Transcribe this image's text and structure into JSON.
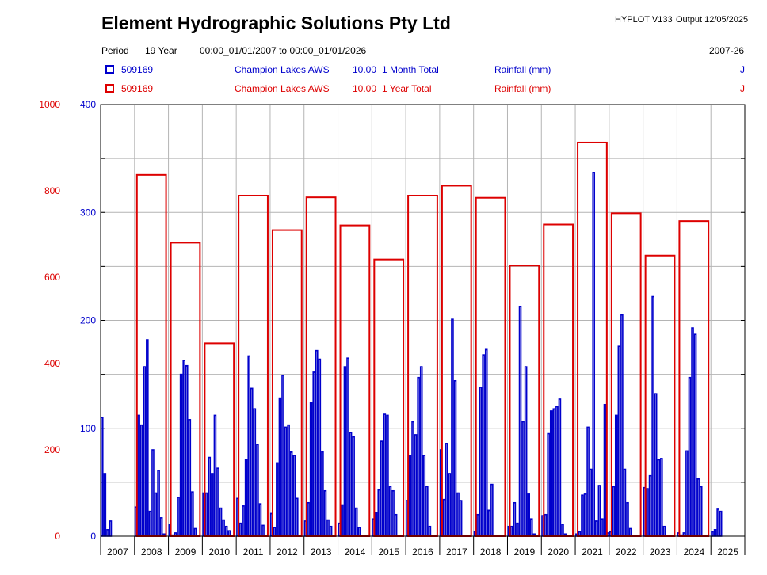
{
  "header": {
    "title": "Element Hydrographic Solutions Pty Ltd",
    "version": "HYPLOT V133",
    "output": "Output 12/05/2025",
    "period_label": "Period",
    "period_length": "19 Year",
    "period_range": "00:00_01/01/2007 to 00:00_01/01/2026",
    "period_code": "2007-26"
  },
  "legend": [
    {
      "site": "509169",
      "name": "Champion Lakes AWS",
      "code": "10.00",
      "agg": "1 Month Total",
      "variable": "Rainfall (mm)",
      "flag": "J",
      "color": "#0000CC"
    },
    {
      "site": "509169",
      "name": "Champion Lakes AWS",
      "code": "10.00",
      "agg": "1 Year Total",
      "variable": "Rainfall (mm)",
      "flag": "J",
      "color": "#DD0000"
    }
  ],
  "chart_data": {
    "type": "bar",
    "x_ticks": [
      "2007",
      "2008",
      "2009",
      "2010",
      "2011",
      "2012",
      "2013",
      "2014",
      "2015",
      "2016",
      "2017",
      "2018",
      "2019",
      "2020",
      "2021",
      "2022",
      "2023",
      "2024",
      "2025"
    ],
    "left_axis": {
      "ticks": [
        "0",
        "200",
        "400",
        "600",
        "800",
        "1000"
      ],
      "range": [
        0,
        1000
      ],
      "color": "#DD0000"
    },
    "right_axis": {
      "ticks": [
        "0",
        "100",
        "200",
        "300",
        "400"
      ],
      "range": [
        0,
        400
      ],
      "color": "#0000CC"
    },
    "grid": true,
    "series": [
      {
        "name": "1 Month Total",
        "axis": "right",
        "color": "#0000CC",
        "values": [
          [
            110,
            58,
            6,
            14,
            0,
            0,
            0,
            0,
            0,
            0,
            0,
            0
          ],
          [
            27,
            112,
            103,
            157,
            182,
            23,
            80,
            40,
            61,
            17,
            2,
            0
          ],
          [
            11,
            1,
            3,
            36,
            150,
            163,
            158,
            108,
            41,
            7,
            0,
            0
          ],
          [
            40,
            40,
            73,
            58,
            112,
            63,
            26,
            15,
            9,
            5,
            0,
            0
          ],
          [
            35,
            12,
            28,
            71,
            167,
            137,
            118,
            85,
            30,
            10,
            0,
            0
          ],
          [
            21,
            8,
            68,
            128,
            149,
            101,
            103,
            78,
            75,
            35,
            0,
            0
          ],
          [
            14,
            31,
            124,
            152,
            172,
            164,
            78,
            42,
            15,
            9,
            0,
            0
          ],
          [
            12,
            29,
            157,
            165,
            96,
            92,
            26,
            8,
            0,
            0,
            0,
            0
          ],
          [
            16,
            22,
            43,
            88,
            113,
            112,
            46,
            42,
            20,
            0,
            0,
            0
          ],
          [
            33,
            75,
            106,
            94,
            147,
            157,
            75,
            46,
            9,
            0,
            0,
            0
          ],
          [
            80,
            34,
            86,
            58,
            201,
            144,
            40,
            33,
            0,
            0,
            0,
            0
          ],
          [
            4,
            20,
            138,
            168,
            173,
            24,
            48,
            0,
            0,
            0,
            0,
            0
          ],
          [
            9,
            9,
            31,
            12,
            213,
            106,
            157,
            39,
            16,
            2,
            0,
            0
          ],
          [
            19,
            20,
            95,
            116,
            118,
            120,
            127,
            11,
            2,
            0,
            0,
            0
          ],
          [
            2,
            4,
            38,
            39,
            101,
            62,
            337,
            14,
            47,
            16,
            122,
            3
          ],
          [
            4,
            46,
            112,
            176,
            205,
            62,
            31,
            7,
            0,
            0,
            0,
            0
          ],
          [
            45,
            44,
            56,
            222,
            132,
            71,
            72,
            9,
            0,
            0,
            0,
            0
          ],
          [
            3,
            1,
            3,
            79,
            147,
            193,
            187,
            53,
            46,
            0,
            0,
            0
          ],
          [
            4,
            6,
            25,
            23,
            0,
            0,
            0,
            0,
            0,
            0,
            0,
            0
          ]
        ]
      },
      {
        "name": "1 Year Total",
        "axis": "left",
        "color": "#DD0000",
        "values": [
          null,
          837,
          680,
          447,
          789,
          709,
          785,
          720,
          641,
          789,
          812,
          784,
          627,
          722,
          912,
          748,
          650,
          730,
          null
        ]
      }
    ]
  }
}
